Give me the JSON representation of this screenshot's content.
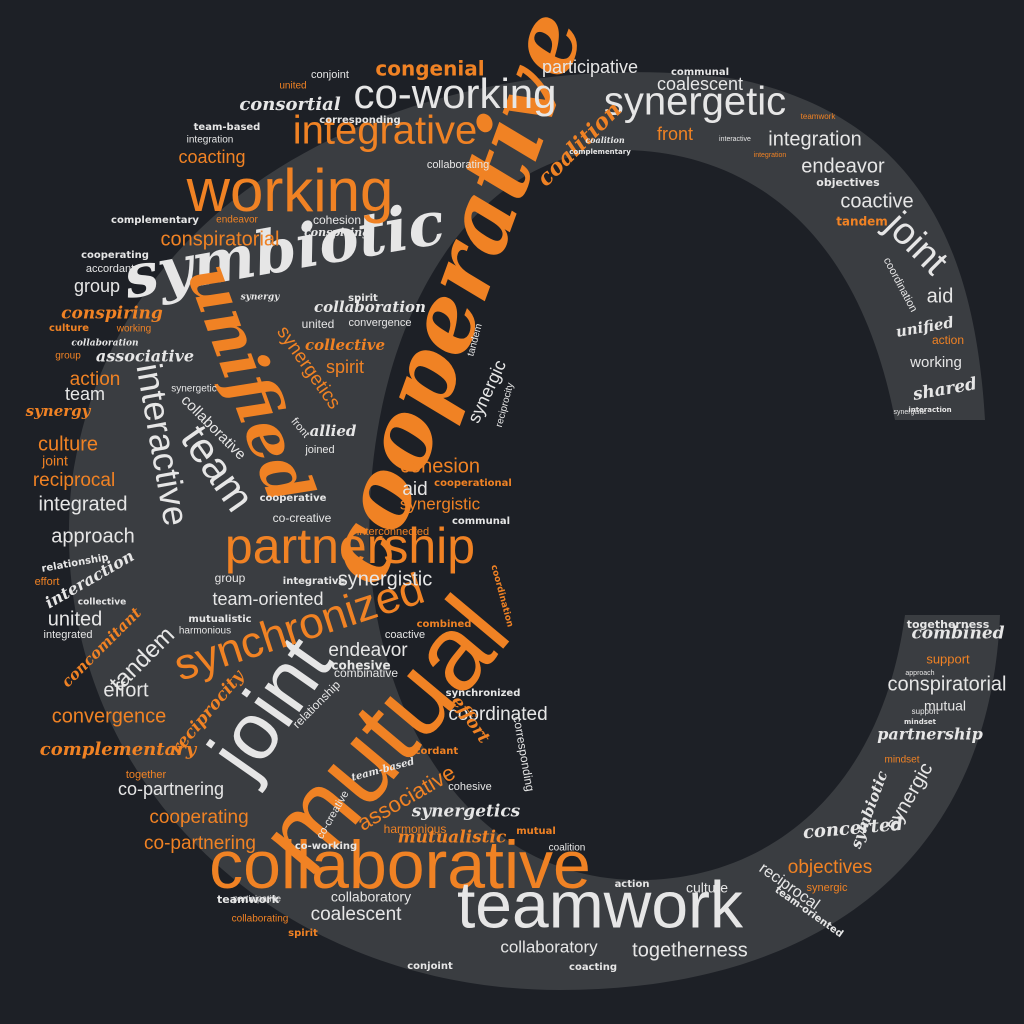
{
  "colors": {
    "background": "#1d2026",
    "shape": "#3a3d41",
    "primary": "#f08224",
    "secondary": "#e6e6e6"
  },
  "shape_icon": "letter-c-shape",
  "words": [
    {
      "text": "cooperative",
      "color": "orange"
    },
    {
      "text": "symbiotic",
      "color": "white"
    },
    {
      "text": "mutual",
      "color": "orange"
    },
    {
      "text": "collaborative",
      "color": "orange"
    },
    {
      "text": "teamwork",
      "color": "white"
    },
    {
      "text": "working",
      "color": "orange"
    },
    {
      "text": "partnership",
      "color": "orange"
    },
    {
      "text": "unified",
      "color": "orange"
    },
    {
      "text": "joint",
      "color": "white"
    },
    {
      "text": "synchronized",
      "color": "orange"
    },
    {
      "text": "interactive",
      "color": "white"
    },
    {
      "text": "co-working",
      "color": "white"
    },
    {
      "text": "synergetic",
      "color": "white"
    },
    {
      "text": "integrative",
      "color": "orange"
    },
    {
      "text": "team",
      "color": "white"
    },
    {
      "text": "coalition",
      "color": "orange"
    },
    {
      "text": "congenial",
      "color": "orange"
    },
    {
      "text": "participative",
      "color": "white"
    },
    {
      "text": "coalescent",
      "color": "white"
    },
    {
      "text": "communal",
      "color": "white"
    },
    {
      "text": "consortial",
      "color": "white"
    },
    {
      "text": "integration",
      "color": "white"
    },
    {
      "text": "front",
      "color": "orange"
    },
    {
      "text": "endeavor",
      "color": "white"
    },
    {
      "text": "objectives",
      "color": "white"
    },
    {
      "text": "coactive",
      "color": "white"
    },
    {
      "text": "tandem",
      "color": "orange"
    },
    {
      "text": "joint",
      "color": "white"
    },
    {
      "text": "coordination",
      "color": "white"
    },
    {
      "text": "aid",
      "color": "white"
    },
    {
      "text": "unified",
      "color": "white"
    },
    {
      "text": "action",
      "color": "orange"
    },
    {
      "text": "working",
      "color": "white"
    },
    {
      "text": "shared",
      "color": "white"
    },
    {
      "text": "conspiratorial",
      "color": "orange"
    },
    {
      "text": "coacting",
      "color": "orange"
    },
    {
      "text": "conjoint",
      "color": "white"
    },
    {
      "text": "united",
      "color": "orange"
    },
    {
      "text": "corresponding",
      "color": "white"
    },
    {
      "text": "team-based",
      "color": "white"
    },
    {
      "text": "integration",
      "color": "white"
    },
    {
      "text": "collaborating",
      "color": "white"
    },
    {
      "text": "complementary",
      "color": "white"
    },
    {
      "text": "endeavor",
      "color": "orange"
    },
    {
      "text": "cohesion",
      "color": "white"
    },
    {
      "text": "conspiring",
      "color": "white"
    },
    {
      "text": "cooperating",
      "color": "white"
    },
    {
      "text": "accordant",
      "color": "white"
    },
    {
      "text": "group",
      "color": "white"
    },
    {
      "text": "conspiring",
      "color": "orange"
    },
    {
      "text": "collaboration",
      "color": "white"
    },
    {
      "text": "spirit",
      "color": "white"
    },
    {
      "text": "united",
      "color": "white"
    },
    {
      "text": "convergence",
      "color": "white"
    },
    {
      "text": "synergy",
      "color": "white"
    },
    {
      "text": "culture",
      "color": "orange"
    },
    {
      "text": "working",
      "color": "orange"
    },
    {
      "text": "collaboration",
      "color": "white"
    },
    {
      "text": "group",
      "color": "orange"
    },
    {
      "text": "associative",
      "color": "white"
    },
    {
      "text": "collective",
      "color": "orange"
    },
    {
      "text": "synergetics",
      "color": "orange"
    },
    {
      "text": "spirit",
      "color": "orange"
    },
    {
      "text": "synergetic",
      "color": "white"
    },
    {
      "text": "action",
      "color": "orange"
    },
    {
      "text": "team",
      "color": "white"
    },
    {
      "text": "synergy",
      "color": "orange"
    },
    {
      "text": "culture",
      "color": "orange"
    },
    {
      "text": "joint",
      "color": "orange"
    },
    {
      "text": "reciprocal",
      "color": "orange"
    },
    {
      "text": "integrated",
      "color": "white"
    },
    {
      "text": "approach",
      "color": "white"
    },
    {
      "text": "relationship",
      "color": "white"
    },
    {
      "text": "effort",
      "color": "orange"
    },
    {
      "text": "interaction",
      "color": "white"
    },
    {
      "text": "collective",
      "color": "white"
    },
    {
      "text": "united",
      "color": "white"
    },
    {
      "text": "integrated",
      "color": "white"
    },
    {
      "text": "concomitant",
      "color": "orange"
    },
    {
      "text": "collaborative",
      "color": "white"
    },
    {
      "text": "joined",
      "color": "white"
    },
    {
      "text": "allied",
      "color": "white"
    },
    {
      "text": "front",
      "color": "white"
    },
    {
      "text": "cohesion",
      "color": "orange"
    },
    {
      "text": "aid",
      "color": "white"
    },
    {
      "text": "synergistic",
      "color": "orange"
    },
    {
      "text": "cooperational",
      "color": "orange"
    },
    {
      "text": "cooperative",
      "color": "white"
    },
    {
      "text": "co-creative",
      "color": "white"
    },
    {
      "text": "interconnected",
      "color": "orange"
    },
    {
      "text": "communal",
      "color": "white"
    },
    {
      "text": "synergic",
      "color": "white"
    },
    {
      "text": "reciprocity",
      "color": "white"
    },
    {
      "text": "tandem",
      "color": "white"
    },
    {
      "text": "synergistic",
      "color": "white"
    },
    {
      "text": "group",
      "color": "white"
    },
    {
      "text": "integrative",
      "color": "white"
    },
    {
      "text": "team-oriented",
      "color": "white"
    },
    {
      "text": "coordination",
      "color": "orange"
    },
    {
      "text": "mutualistic",
      "color": "white"
    },
    {
      "text": "harmonious",
      "color": "white"
    },
    {
      "text": "coactive",
      "color": "white"
    },
    {
      "text": "combined",
      "color": "orange"
    },
    {
      "text": "tandem",
      "color": "white"
    },
    {
      "text": "endeavor",
      "color": "white"
    },
    {
      "text": "cohesive",
      "color": "white"
    },
    {
      "text": "combinative",
      "color": "white"
    },
    {
      "text": "effort",
      "color": "white"
    },
    {
      "text": "convergence",
      "color": "orange"
    },
    {
      "text": "reciprocity",
      "color": "orange"
    },
    {
      "text": "relationship",
      "color": "white"
    },
    {
      "text": "synchronized",
      "color": "white"
    },
    {
      "text": "coordinated",
      "color": "white"
    },
    {
      "text": "effort",
      "color": "orange"
    },
    {
      "text": "complementary",
      "color": "orange"
    },
    {
      "text": "together",
      "color": "orange"
    },
    {
      "text": "co-partnering",
      "color": "white"
    },
    {
      "text": "cooperating",
      "color": "orange"
    },
    {
      "text": "co-partnering",
      "color": "orange"
    },
    {
      "text": "accordant",
      "color": "orange"
    },
    {
      "text": "team-based",
      "color": "white"
    },
    {
      "text": "associative",
      "color": "orange"
    },
    {
      "text": "corresponding",
      "color": "white"
    },
    {
      "text": "cohesive",
      "color": "white"
    },
    {
      "text": "synergetics",
      "color": "white"
    },
    {
      "text": "mutualistic",
      "color": "orange"
    },
    {
      "text": "harmonious",
      "color": "orange"
    },
    {
      "text": "mutual",
      "color": "orange"
    },
    {
      "text": "co-working",
      "color": "white"
    },
    {
      "text": "coalition",
      "color": "white"
    },
    {
      "text": "co-creative",
      "color": "white"
    },
    {
      "text": "action",
      "color": "white"
    },
    {
      "text": "culture",
      "color": "white"
    },
    {
      "text": "teamwork",
      "color": "white"
    },
    {
      "text": "collaboratory",
      "color": "white"
    },
    {
      "text": "coalescent",
      "color": "white"
    },
    {
      "text": "collaborating",
      "color": "orange"
    },
    {
      "text": "spirit",
      "color": "orange"
    },
    {
      "text": "participative",
      "color": "white"
    },
    {
      "text": "collaboratory",
      "color": "white"
    },
    {
      "text": "togetherness",
      "color": "white"
    },
    {
      "text": "conjoint",
      "color": "white"
    },
    {
      "text": "coacting",
      "color": "white"
    },
    {
      "text": "togetherness",
      "color": "white"
    },
    {
      "text": "combined",
      "color": "white"
    },
    {
      "text": "support",
      "color": "orange"
    },
    {
      "text": "conspiratorial",
      "color": "white"
    },
    {
      "text": "mutual",
      "color": "white"
    },
    {
      "text": "partnership",
      "color": "white"
    },
    {
      "text": "mindset",
      "color": "orange"
    },
    {
      "text": "synergic",
      "color": "white"
    },
    {
      "text": "concerted",
      "color": "white"
    },
    {
      "text": "objectives",
      "color": "orange"
    },
    {
      "text": "symbiotic",
      "color": "white"
    },
    {
      "text": "synergic",
      "color": "orange"
    },
    {
      "text": "reciprocal",
      "color": "white"
    },
    {
      "text": "team-oriented",
      "color": "white"
    },
    {
      "text": "approach",
      "color": "white"
    },
    {
      "text": "mindset",
      "color": "white"
    },
    {
      "text": "support",
      "color": "white"
    },
    {
      "text": "synergistic",
      "color": "white"
    },
    {
      "text": "interaction",
      "color": "white"
    },
    {
      "text": "teamwork",
      "color": "orange"
    },
    {
      "text": "interactive",
      "color": "white"
    },
    {
      "text": "integration",
      "color": "orange"
    },
    {
      "text": "coalition",
      "color": "white"
    },
    {
      "text": "complementary",
      "color": "white"
    }
  ]
}
